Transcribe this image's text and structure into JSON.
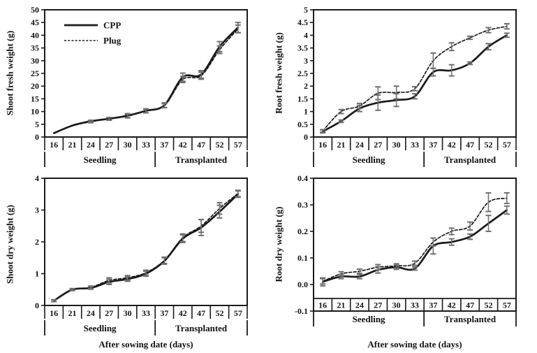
{
  "figure": {
    "xlabel": "After sowing date (days)",
    "legend": {
      "position": "top-left-inside",
      "items": [
        {
          "label": "CPP",
          "style": "solid"
        },
        {
          "label": "Plug",
          "style": "dashed"
        }
      ]
    },
    "colors": {
      "line": "#1a1a1a",
      "error_bar": "#6f6f6f",
      "frame": "#1a1a1a",
      "text": "#111111",
      "background": "#ffffff"
    }
  },
  "chart_data": [
    {
      "type": "line",
      "panel": "top-left",
      "ylabel": "Shoot fresh weight (g)",
      "xlabel": "",
      "categories": [
        16,
        21,
        24,
        27,
        30,
        33,
        37,
        42,
        47,
        52,
        57
      ],
      "group_labels": [
        {
          "label": "Seedling",
          "span": 6
        },
        {
          "label": "Transplanted",
          "span": 5
        }
      ],
      "ylim": [
        0,
        50
      ],
      "yticks": [
        "0",
        "5",
        "10",
        "15",
        "20",
        "25",
        "30",
        "35",
        "40",
        "45",
        "50"
      ],
      "grid": false,
      "show_legend": true,
      "series": [
        {
          "name": "CPP",
          "style": "solid",
          "values": [
            1.5,
            4.5,
            6.2,
            7.2,
            8.4,
            10.3,
            12.5,
            23.5,
            24.6,
            35.5,
            43.0
          ],
          "errors": [
            0.3,
            0.3,
            0.4,
            0.5,
            0.8,
            0.8,
            0.9,
            1.6,
            1.5,
            2.0,
            2.0
          ]
        },
        {
          "name": "Plug",
          "style": "dashed",
          "values": [
            1.5,
            4.4,
            6.0,
            7.1,
            8.2,
            10.2,
            12.3,
            22.6,
            24.1,
            34.3,
            42.5
          ],
          "errors": [
            0.3,
            0.3,
            0.4,
            0.5,
            0.7,
            0.7,
            0.8,
            1.2,
            1.4,
            1.5,
            1.5
          ]
        }
      ]
    },
    {
      "type": "line",
      "panel": "top-right",
      "ylabel": "Root fresh weight (g)",
      "xlabel": "",
      "categories": [
        16,
        21,
        24,
        27,
        30,
        33,
        37,
        42,
        47,
        52,
        57
      ],
      "group_labels": [
        {
          "label": "Seedling",
          "span": 6
        },
        {
          "label": "Transplanted",
          "span": 5
        }
      ],
      "ylim": [
        0,
        5
      ],
      "yticks": [
        "0",
        "0.5",
        "1",
        "1.5",
        "2",
        "2.5",
        "3",
        "3.5",
        "4",
        "4.5",
        "5"
      ],
      "grid": false,
      "show_legend": false,
      "series": [
        {
          "name": "CPP",
          "style": "solid",
          "values": [
            0.22,
            0.62,
            1.12,
            1.35,
            1.45,
            1.6,
            2.55,
            2.62,
            2.9,
            3.55,
            4.0
          ],
          "errors": [
            0.06,
            0.05,
            0.12,
            0.3,
            0.25,
            0.1,
            0.15,
            0.22,
            0.05,
            0.12,
            0.08
          ]
        },
        {
          "name": "Plug",
          "style": "dashed",
          "values": [
            0.24,
            1.0,
            1.22,
            1.72,
            1.75,
            1.9,
            3.0,
            3.55,
            3.9,
            4.2,
            4.35
          ],
          "errors": [
            0.05,
            0.08,
            0.1,
            0.25,
            0.25,
            0.08,
            0.3,
            0.15,
            0.06,
            0.1,
            0.1
          ]
        }
      ]
    },
    {
      "type": "line",
      "panel": "bottom-left",
      "ylabel": "Shoot dry weight (g)",
      "xlabel": "After sowing date (days)",
      "categories": [
        16,
        21,
        24,
        27,
        30,
        33,
        37,
        42,
        47,
        52,
        57
      ],
      "group_labels": [
        {
          "label": "Seedling",
          "span": 6
        },
        {
          "label": "Transplanted",
          "span": 5
        }
      ],
      "ylim": [
        0,
        4
      ],
      "yticks": [
        "0",
        "1",
        "2",
        "3",
        "4"
      ],
      "grid": false,
      "show_legend": false,
      "series": [
        {
          "name": "CPP",
          "style": "solid",
          "values": [
            0.15,
            0.5,
            0.55,
            0.74,
            0.83,
            1.0,
            1.4,
            2.1,
            2.45,
            2.95,
            3.5
          ],
          "errors": [
            0.03,
            0.03,
            0.04,
            0.08,
            0.07,
            0.08,
            0.1,
            0.12,
            0.25,
            0.2,
            0.1
          ]
        },
        {
          "name": "Plug",
          "style": "dashed",
          "values": [
            0.15,
            0.5,
            0.57,
            0.79,
            0.87,
            1.03,
            1.42,
            2.13,
            2.5,
            3.05,
            3.52
          ],
          "errors": [
            0.03,
            0.03,
            0.04,
            0.08,
            0.07,
            0.08,
            0.1,
            0.12,
            0.2,
            0.18,
            0.1
          ]
        }
      ]
    },
    {
      "type": "line",
      "panel": "bottom-right",
      "ylabel": "Root dry weight (g)",
      "xlabel": "After sowing date (days)",
      "categories": [
        16,
        21,
        24,
        27,
        30,
        33,
        37,
        42,
        47,
        52,
        57
      ],
      "group_labels": [
        {
          "label": "Seedling",
          "span": 6
        },
        {
          "label": "Transplanted",
          "span": 5
        }
      ],
      "ylim": [
        -0.1,
        0.4
      ],
      "yticks": [
        "-0.1",
        "0.0",
        "0.1",
        "0.2",
        "0.3",
        "0.4"
      ],
      "grid": false,
      "show_legend": false,
      "series": [
        {
          "name": "CPP",
          "style": "solid",
          "values": [
            0.01,
            0.03,
            0.03,
            0.055,
            0.065,
            0.06,
            0.145,
            0.16,
            0.18,
            0.23,
            0.28
          ],
          "errors": [
            0.015,
            0.008,
            0.008,
            0.012,
            0.008,
            0.006,
            0.03,
            0.012,
            0.01,
            0.03,
            0.015
          ]
        },
        {
          "name": "Plug",
          "style": "dashed",
          "values": [
            0.012,
            0.04,
            0.05,
            0.065,
            0.07,
            0.08,
            0.16,
            0.2,
            0.22,
            0.31,
            0.325
          ],
          "errors": [
            0.01,
            0.008,
            0.008,
            0.01,
            0.008,
            0.008,
            0.015,
            0.012,
            0.015,
            0.035,
            0.02
          ]
        }
      ]
    }
  ]
}
